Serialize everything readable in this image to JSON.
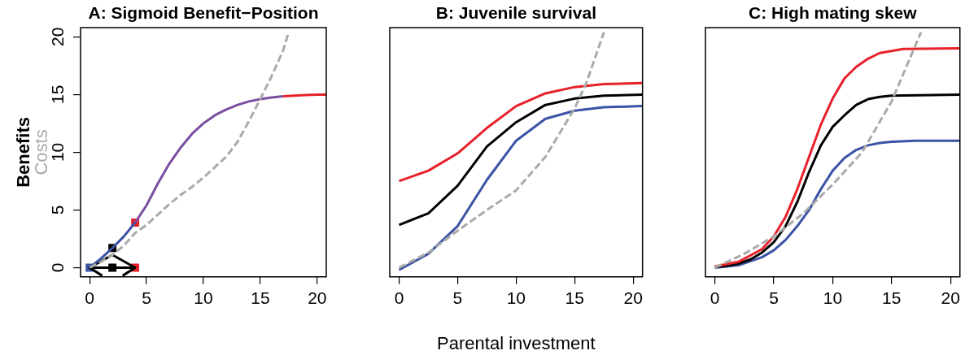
{
  "chart_data": [
    {
      "type": "line",
      "title": "A: Sigmoid Benefit−Position",
      "ylabel": "Benefits",
      "xlim": [
        -0.8,
        20.8
      ],
      "ylim": [
        -0.8,
        20.8
      ],
      "xticks": [
        0,
        5,
        10,
        15,
        20
      ],
      "yticks": [
        0,
        5,
        10,
        15,
        20
      ],
      "grid": false,
      "line_style": "solid",
      "marker": "none",
      "series": [
        {
          "name": "Costs",
          "color": "#aaaaaa",
          "line_style": "dashed",
          "x": [
            0,
            1,
            2,
            3,
            4,
            5,
            6,
            7,
            8,
            9,
            10,
            11,
            12,
            13,
            14,
            15,
            16,
            17,
            17.5
          ],
          "values": [
            0,
            0.5,
            1.1,
            1.9,
            3.0,
            3.7,
            4.6,
            5.5,
            6.3,
            7.0,
            7.8,
            8.7,
            9.6,
            10.9,
            12.7,
            14.6,
            16.6,
            18.8,
            20.4
          ]
        },
        {
          "color": "#3a53a4",
          "x": [
            0,
            1,
            2,
            3,
            4
          ],
          "values": [
            0,
            0.8,
            1.7,
            2.7,
            3.9
          ]
        },
        {
          "color": "#7b4fa0",
          "x": [
            4,
            5,
            6,
            7,
            8,
            9,
            10,
            11,
            12,
            13,
            14,
            15,
            16,
            17
          ],
          "values": [
            3.9,
            5.4,
            7.3,
            9.0,
            10.4,
            11.6,
            12.5,
            13.2,
            13.7,
            14.1,
            14.4,
            14.6,
            14.75,
            14.85
          ]
        },
        {
          "color": "#e8202a",
          "x": [
            17,
            18,
            19,
            20,
            20.8
          ],
          "values": [
            14.85,
            14.9,
            14.95,
            15,
            15
          ]
        },
        {
          "color": "#000000",
          "x": [
            0,
            2,
            4,
            0,
            1.1,
            2,
            2.9,
            4
          ],
          "values": [
            0,
            1.1,
            0,
            0,
            -0.7,
            null,
            -0.7,
            0
          ]
        },
        {
          "type": "scatter",
          "marker": "square",
          "x": [
            0,
            2,
            4,
            2,
            4
          ],
          "values": [
            0,
            1.7,
            3.9,
            0,
            0
          ],
          "colors": [
            "#3a53a4",
            "#000000",
            "#e8202a",
            "#000000",
            "#e8202a"
          ]
        }
      ]
    },
    {
      "type": "line",
      "title": "B: Juvenile survival",
      "xlabel": "Parental investment",
      "xlim": [
        -0.8,
        20.8
      ],
      "ylim": [
        -0.8,
        20.8
      ],
      "xticks": [
        0,
        5,
        10,
        15,
        20
      ],
      "tick_labels": "x",
      "grid": false,
      "line_style": "solid",
      "marker": "none",
      "series": [
        {
          "color": "#aaaaaa",
          "line_style": "dashed",
          "x": [
            0,
            2.5,
            5,
            7.5,
            10,
            12.5,
            15,
            16,
            17.5
          ],
          "values": [
            0,
            1.3,
            3.2,
            5.0,
            6.7,
            9.6,
            13.8,
            16.0,
            20.4
          ]
        },
        {
          "color": "#e8202a",
          "x": [
            0,
            2.5,
            5,
            7.5,
            10,
            12.5,
            15,
            17.5,
            20.8
          ],
          "values": [
            7.5,
            8.4,
            9.9,
            12.1,
            14.0,
            15.1,
            15.65,
            15.9,
            16
          ]
        },
        {
          "color": "#000000",
          "x": [
            0,
            2.5,
            5,
            7.5,
            10,
            12.5,
            15,
            17.5,
            20.8
          ],
          "values": [
            3.7,
            4.7,
            7.1,
            10.5,
            12.6,
            14.1,
            14.65,
            14.9,
            15
          ]
        },
        {
          "color": "#3a53a4",
          "x": [
            0,
            2.5,
            5,
            7.5,
            10,
            12.5,
            15,
            17.5,
            20.8
          ],
          "values": [
            -0.2,
            1.2,
            3.6,
            7.6,
            11.0,
            12.9,
            13.6,
            13.9,
            14
          ]
        }
      ]
    },
    {
      "type": "line",
      "title": "C: High mating skew",
      "xlim": [
        -0.8,
        20.8
      ],
      "ylim": [
        -0.8,
        20.8
      ],
      "xticks": [
        0,
        5,
        10,
        15,
        20
      ],
      "tick_labels": "x",
      "grid": false,
      "line_style": "solid",
      "marker": "none",
      "series": [
        {
          "color": "#aaaaaa",
          "line_style": "dashed",
          "x": [
            0,
            2.5,
            5,
            7.5,
            10,
            12.5,
            15,
            17.5
          ],
          "values": [
            0,
            1.2,
            2.7,
            4.7,
            7.2,
            10.0,
            14.4,
            20.4
          ]
        },
        {
          "color": "#e8202a",
          "x": [
            0,
            2,
            4,
            5,
            6,
            7,
            8,
            9,
            10,
            11,
            12,
            13,
            14,
            16,
            20.8
          ],
          "values": [
            0.1,
            0.5,
            1.6,
            2.7,
            4.4,
            6.8,
            9.6,
            12.4,
            14.65,
            16.4,
            17.4,
            18.1,
            18.6,
            18.95,
            19
          ]
        },
        {
          "color": "#000000",
          "x": [
            0,
            1,
            2,
            3,
            4,
            5,
            6,
            7,
            8,
            9,
            10,
            11,
            12,
            13,
            14,
            15,
            20.8
          ],
          "values": [
            0.05,
            0.15,
            0.35,
            0.7,
            1.3,
            2.2,
            3.6,
            5.7,
            8.3,
            10.6,
            12.2,
            13.2,
            14.1,
            14.6,
            14.8,
            14.9,
            15
          ]
        },
        {
          "color": "#3a53a4",
          "x": [
            0,
            2,
            4,
            5,
            6,
            7,
            8,
            9,
            10,
            11,
            12,
            13,
            14,
            15,
            17,
            20.8
          ],
          "values": [
            0,
            0.2,
            0.9,
            1.5,
            2.4,
            3.6,
            5.0,
            6.8,
            8.4,
            9.5,
            10.2,
            10.6,
            10.8,
            10.9,
            11,
            11
          ]
        }
      ]
    }
  ]
}
